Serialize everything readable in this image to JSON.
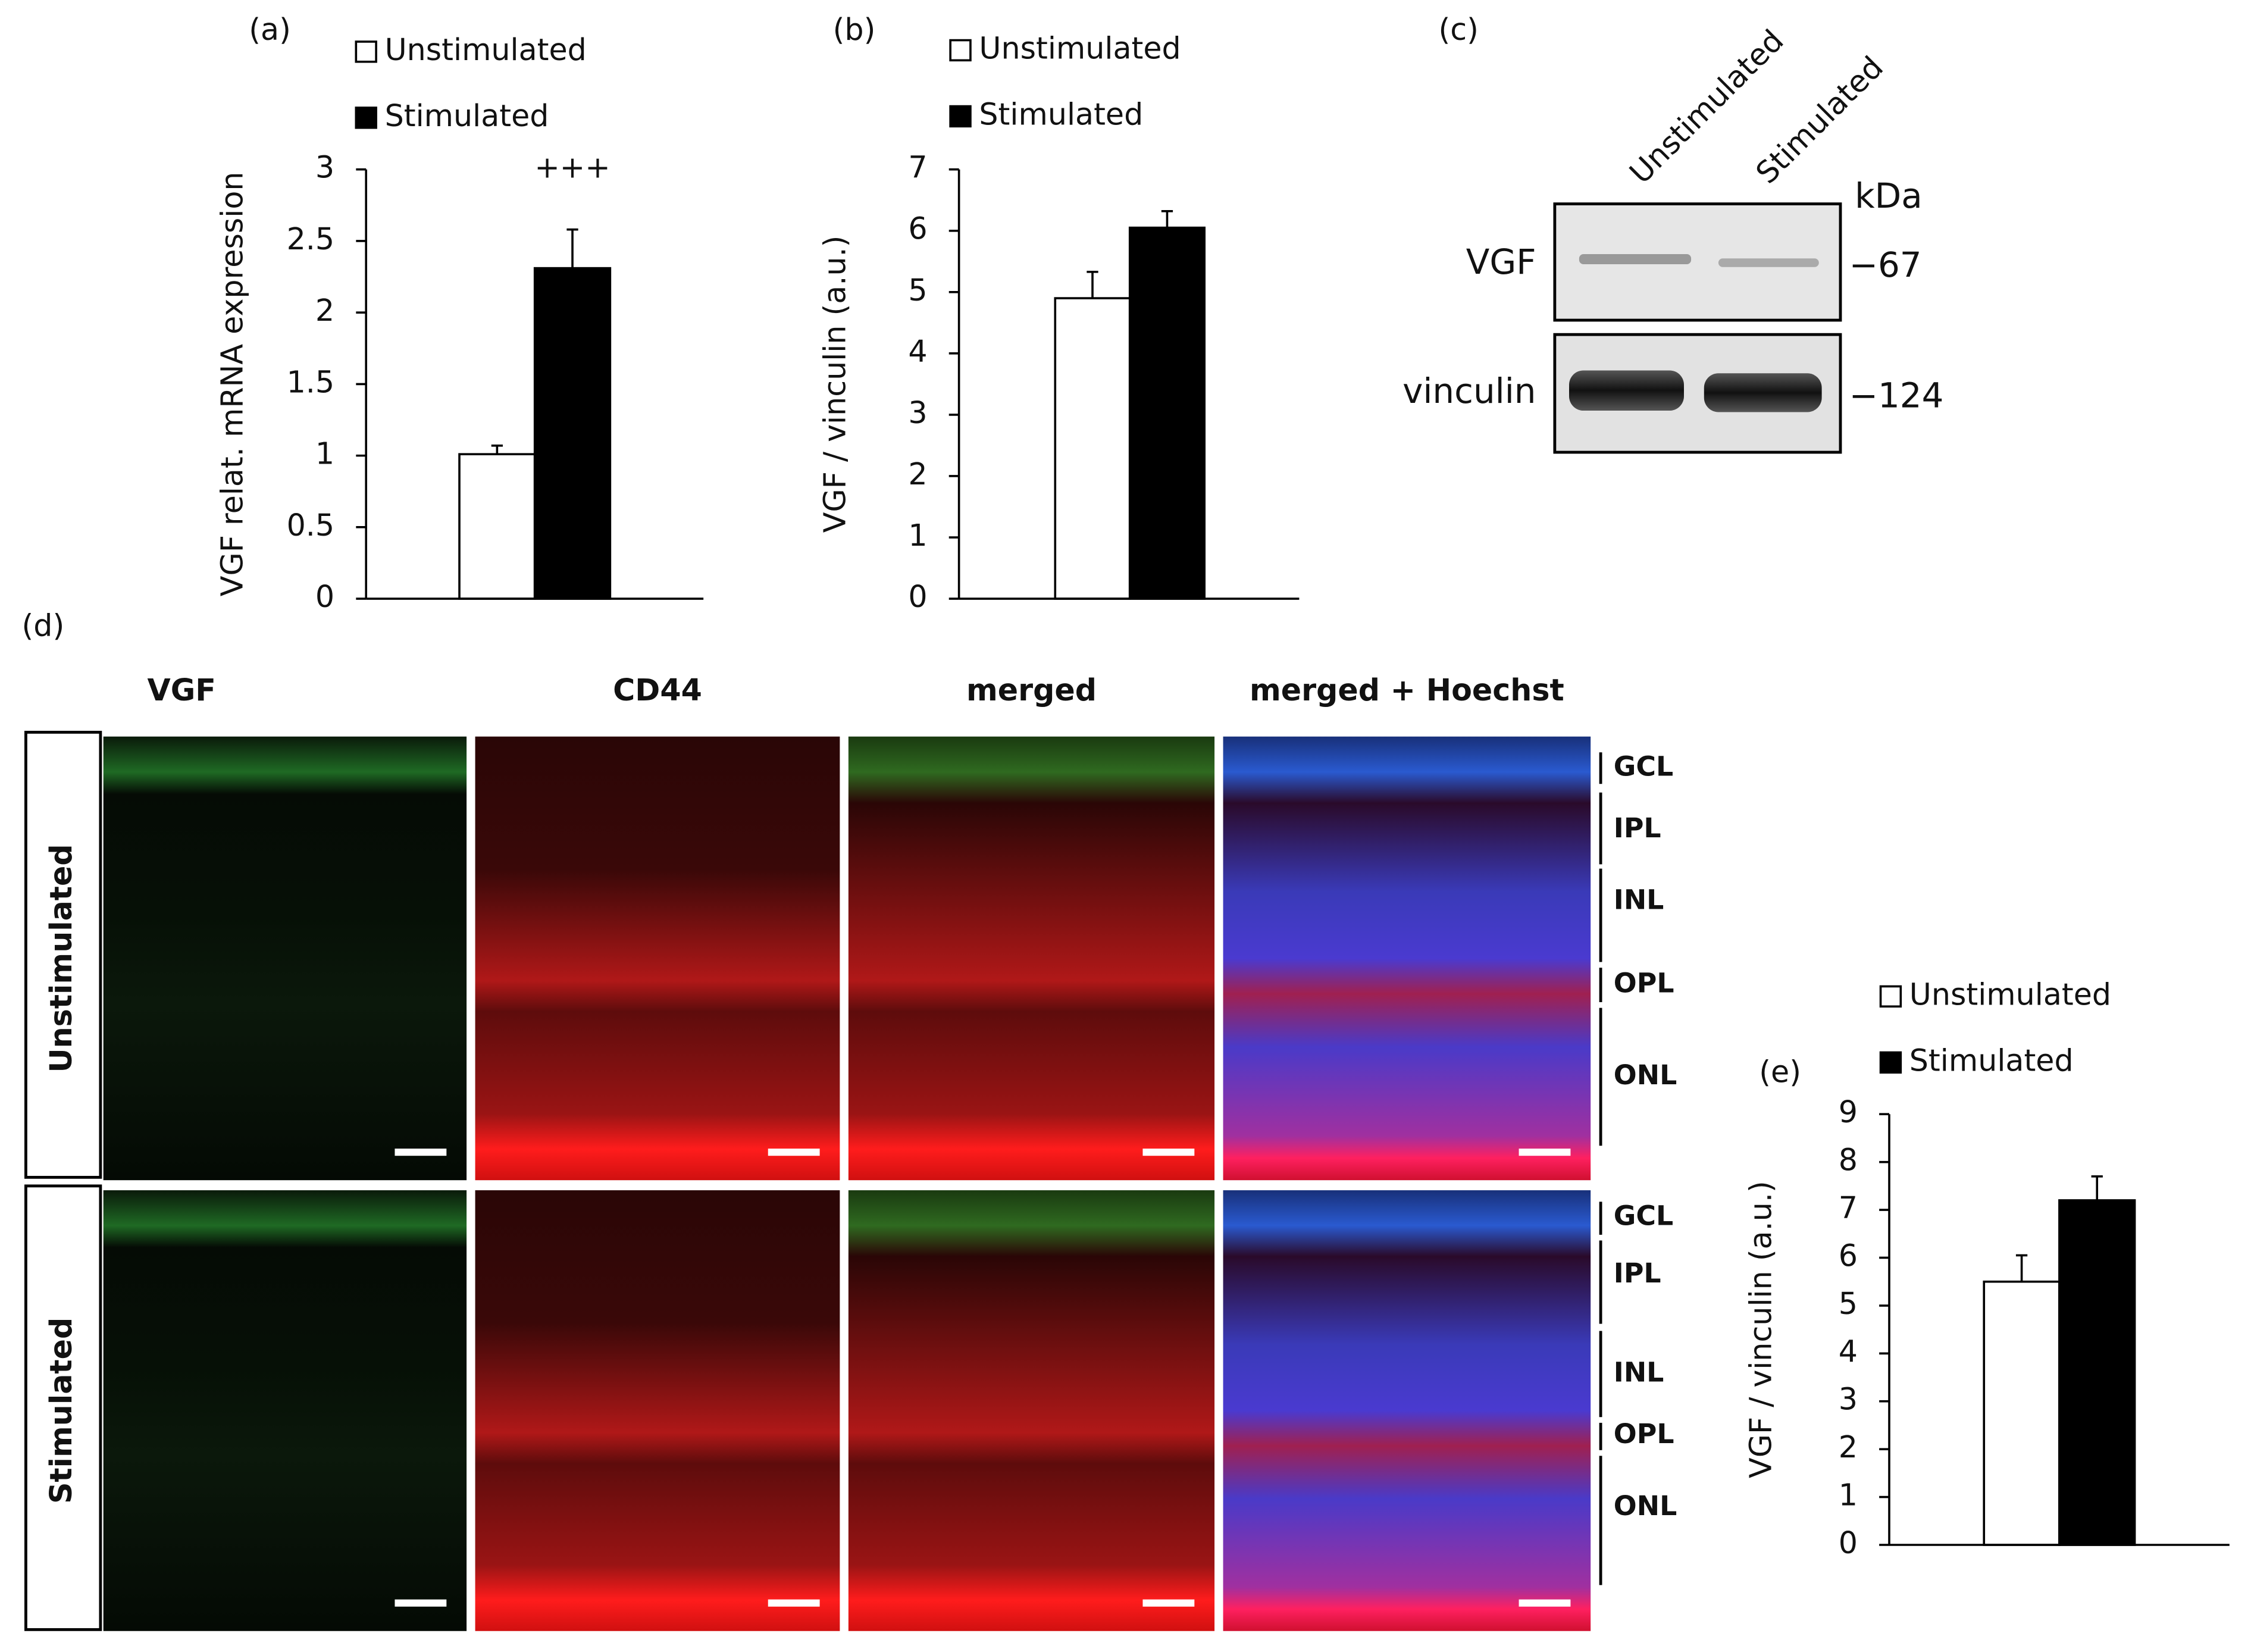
{
  "chart_data": [
    {
      "type": "bar",
      "panel": "(a)",
      "y_label": "VGF relat. mRNA expression",
      "annotation": "+++",
      "categories": [
        null
      ],
      "series": [
        {
          "name": "Unstimulated",
          "color": "#ffffff",
          "values": [
            1.01
          ],
          "errors": [
            0.06
          ]
        },
        {
          "name": "Stimulated",
          "color": "#000000",
          "values": [
            2.31
          ],
          "errors": [
            0.27
          ]
        }
      ],
      "ylim": [
        0,
        3
      ],
      "yticks": [
        0,
        0.5,
        1,
        1.5,
        2,
        2.5,
        3
      ]
    },
    {
      "type": "bar",
      "panel": "(b)",
      "y_label": "VGF / vinculin (a.u.)",
      "categories": [
        null
      ],
      "series": [
        {
          "name": "Unstimulated",
          "color": "#ffffff",
          "values": [
            4.9
          ],
          "errors": [
            0.43
          ]
        },
        {
          "name": "Stimulated",
          "color": "#000000",
          "values": [
            6.05
          ],
          "errors": [
            0.27
          ]
        }
      ],
      "ylim": [
        0,
        7
      ],
      "yticks": [
        0,
        1,
        2,
        3,
        4,
        5,
        6,
        7
      ]
    },
    {
      "type": "bar",
      "panel": "(e)",
      "y_label": "VGF / vinculin (a.u.)",
      "categories": [
        null
      ],
      "series": [
        {
          "name": "Unstimulated",
          "color": "#ffffff",
          "values": [
            5.5
          ],
          "errors": [
            0.55
          ]
        },
        {
          "name": "Stimulated",
          "color": "#000000",
          "values": [
            7.2
          ],
          "errors": [
            0.5
          ]
        }
      ],
      "ylim": [
        0,
        9
      ],
      "yticks": [
        0,
        1,
        2,
        3,
        4,
        5,
        6,
        7,
        8,
        9
      ]
    }
  ],
  "blot": {
    "panel": "(c)",
    "lanes": [
      "Unstimulated",
      "Stimulated"
    ],
    "unit": "kDa",
    "bands": [
      {
        "label": "VGF",
        "marker": "−67"
      },
      {
        "label": "vinculin",
        "marker": "−124"
      }
    ]
  },
  "micrographs": {
    "panel": "(d)",
    "columns": [
      "VGF",
      "CD44",
      "merged",
      "merged + Hoechst"
    ],
    "rows": [
      {
        "label": "Unstimulated",
        "layers": [
          "GCL",
          "IPL",
          "INL",
          "OPL",
          "ONL"
        ]
      },
      {
        "label": "Stimulated",
        "layers": [
          "GCL",
          "IPL",
          "INL",
          "OPL",
          "ONL"
        ]
      }
    ]
  }
}
